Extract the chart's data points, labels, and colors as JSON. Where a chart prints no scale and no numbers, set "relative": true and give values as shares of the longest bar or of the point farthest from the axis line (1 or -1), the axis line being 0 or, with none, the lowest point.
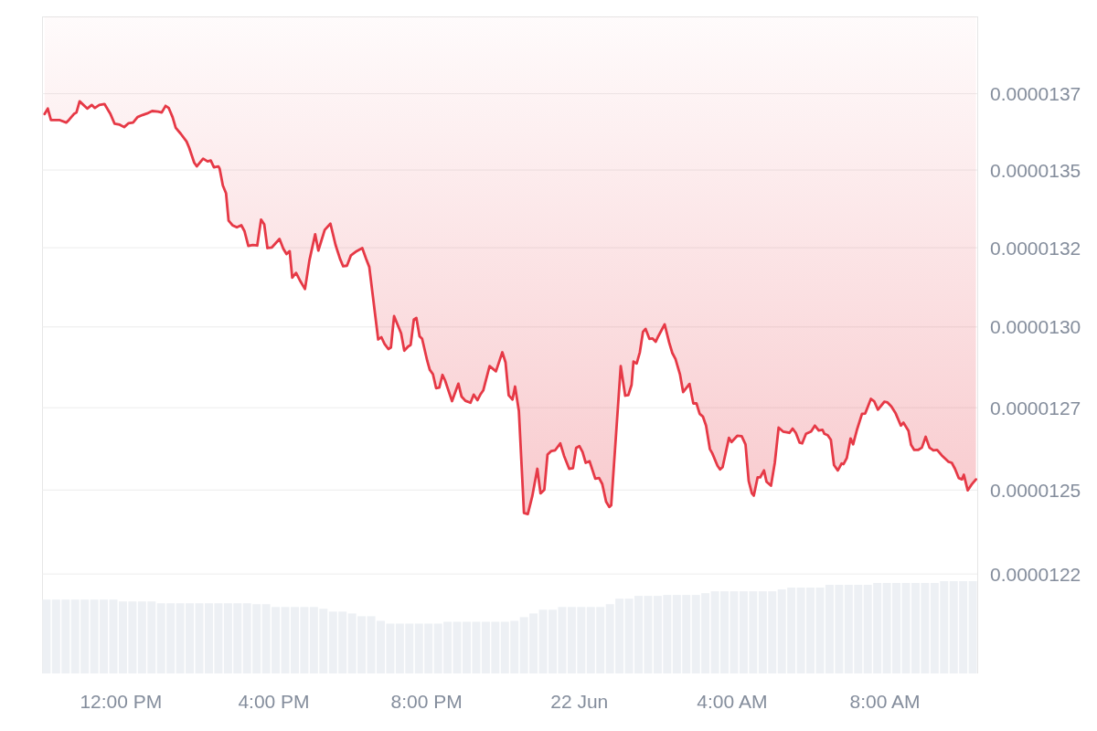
{
  "chart_data": [
    {
      "type": "line",
      "color": "#e63946",
      "log": true,
      "grid": "y",
      "tick_labels": "y",
      "xlim": [
        "--06-21T09:56",
        "--06-22T10:25"
      ],
      "ylim": [
        1.2229e-05,
        1.4008e-05
      ],
      "yticks": [
        {
          "value": 1.225e-05,
          "label": "0.0000122"
        },
        {
          "value": 1.25e-05,
          "label": "0.0000125"
        },
        {
          "value": 1.275e-05,
          "label": "0.0000127"
        },
        {
          "value": 1.3e-05,
          "label": "0.0000130"
        },
        {
          "value": 1.325e-05,
          "label": "0.0000132"
        },
        {
          "value": 1.35e-05,
          "label": "0.0000135"
        },
        {
          "value": 1.375e-05,
          "label": "0.0000137"
        }
      ],
      "x": [
        "--06-21T10:00",
        "--06-21T10:05",
        "--06-21T10:10",
        "--06-21T10:24",
        "--06-21T10:34",
        "--06-21T10:38",
        "--06-21T10:46",
        "--06-21T10:50",
        "--06-21T10:55",
        "--06-21T11:07",
        "--06-21T11:14",
        "--06-21T11:19",
        "--06-21T11:26",
        "--06-21T11:34",
        "--06-21T11:43",
        "--06-21T11:50",
        "--06-21T11:58",
        "--06-21T12:05",
        "--06-21T12:12",
        "--06-21T12:19",
        "--06-21T12:26",
        "--06-21T12:34",
        "--06-21T12:41",
        "--06-21T12:49",
        "--06-21T12:58",
        "--06-21T13:04",
        "--06-21T13:10",
        "--06-21T13:15",
        "--06-21T13:21",
        "--06-21T13:26",
        "--06-21T13:34",
        "--06-21T13:43",
        "--06-21T13:47",
        "--06-21T13:55",
        "--06-21T13:59",
        "--06-21T14:09",
        "--06-21T14:16",
        "--06-21T14:21",
        "--06-21T14:26",
        "--06-21T14:33",
        "--06-21T14:35",
        "--06-21T14:40",
        "--06-21T14:45",
        "--06-21T14:49",
        "--06-21T14:55",
        "--06-21T15:02",
        "--06-21T15:09",
        "--06-21T15:14",
        "--06-21T15:20",
        "--06-21T15:27",
        "--06-21T15:34",
        "--06-21T15:40",
        "--06-21T15:45",
        "--06-21T15:50",
        "--06-21T15:57",
        "--06-21T16:09",
        "--06-21T16:15",
        "--06-21T16:20",
        "--06-21T16:25",
        "--06-21T16:29",
        "--06-21T16:35",
        "--06-21T16:42",
        "--06-21T16:49",
        "--06-21T16:56",
        "--06-21T17:05",
        "--06-21T17:10",
        "--06-21T17:20",
        "--06-21T17:29",
        "--06-21T17:37",
        "--06-21T17:44",
        "--06-21T17:49",
        "--06-21T17:55",
        "--06-21T18:01",
        "--06-21T18:10",
        "--06-21T18:19",
        "--06-21T18:25",
        "--06-21T18:30",
        "--06-21T18:44",
        "--06-21T18:49",
        "--06-21T18:54",
        "--06-21T19:00",
        "--06-21T19:04",
        "--06-21T19:09",
        "--06-21T19:20",
        "--06-21T19:25",
        "--06-21T19:31",
        "--06-21T19:35",
        "--06-21T19:40",
        "--06-21T19:44",
        "--06-21T19:49",
        "--06-21T19:53",
        "--06-21T20:01",
        "--06-21T20:05",
        "--06-21T20:10",
        "--06-21T20:15",
        "--06-21T20:20",
        "--06-21T20:25",
        "--06-21T20:29",
        "--06-21T20:40",
        "--06-21T20:50",
        "--06-21T20:55",
        "--06-21T21:01",
        "--06-21T21:09",
        "--06-21T21:14",
        "--06-21T21:20",
        "--06-21T21:25",
        "--06-21T21:29",
        "--06-21T21:39",
        "--06-21T21:49",
        "--06-21T21:59",
        "--06-21T22:04",
        "--06-21T22:09",
        "--06-21T22:15",
        "--06-21T22:19",
        "--06-21T22:25",
        "--06-21T22:33",
        "--06-21T22:39",
        "--06-21T22:46",
        "--06-21T22:54",
        "--06-21T22:59",
        "--06-21T23:05",
        "--06-21T23:10",
        "--06-21T23:16",
        "--06-21T23:22",
        "--06-21T23:30",
        "--06-21T23:36",
        "--06-21T23:44",
        "--06-21T23:50",
        "--06-21T23:55",
        "--06-22T00:00",
        "--06-22T00:05",
        "--06-22T00:10",
        "--06-22T00:16",
        "--06-22T00:25",
        "--06-22T00:31",
        "--06-22T00:36",
        "--06-22T00:42",
        "--06-22T00:47",
        "--06-22T00:50",
        "--06-22T01:05",
        "--06-22T01:12",
        "--06-22T01:17",
        "--06-22T01:22",
        "--06-22T01:25",
        "--06-22T01:30",
        "--06-22T01:35",
        "--06-22T01:40",
        "--06-22T01:44",
        "--06-22T01:50",
        "--06-22T01:55",
        "--06-22T02:00",
        "--06-22T02:04",
        "--06-22T02:14",
        "--06-22T02:21",
        "--06-22T02:26",
        "--06-22T02:31",
        "--06-22T02:38",
        "--06-22T02:43",
        "--06-22T02:53",
        "--06-22T02:59",
        "--06-22T03:04",
        "--06-22T03:09",
        "--06-22T03:14",
        "--06-22T03:19",
        "--06-22T03:25",
        "--06-22T03:29",
        "--06-22T03:37",
        "--06-22T03:41",
        "--06-22T03:45",
        "--06-22T03:55",
        "--06-22T03:59",
        "--06-22T04:08",
        "--06-22T04:15",
        "--06-22T04:21",
        "--06-22T04:26",
        "--06-22T04:31",
        "--06-22T04:34",
        "--06-22T04:40",
        "--06-22T04:44",
        "--06-22T04:50",
        "--06-22T04:54",
        "--06-22T05:01",
        "--06-22T05:07",
        "--06-22T05:13",
        "--06-22T05:20",
        "--06-22T05:30",
        "--06-22T05:35",
        "--06-22T05:40",
        "--06-22T05:46",
        "--06-22T05:50",
        "--06-22T05:56",
        "--06-22T06:04",
        "--06-22T06:10",
        "--06-22T06:16",
        "--06-22T06:22",
        "--06-22T06:25",
        "--06-22T06:30",
        "--06-22T06:35",
        "--06-22T06:40",
        "--06-22T06:46",
        "--06-22T06:52",
        "--06-22T06:55",
        "--06-22T07:00",
        "--06-22T07:06",
        "--06-22T07:10",
        "--06-22T07:16",
        "--06-22T07:24",
        "--06-22T07:29",
        "--06-22T07:38",
        "--06-22T07:43",
        "--06-22T07:49",
        "--06-22T07:59",
        "--06-22T08:04",
        "--06-22T08:10",
        "--06-22T08:17",
        "--06-22T08:25",
        "--06-22T08:29",
        "--06-22T08:37",
        "--06-22T08:41",
        "--06-22T08:46",
        "--06-22T08:52",
        "--06-22T08:58",
        "--06-22T09:04",
        "--06-22T09:10",
        "--06-22T09:16",
        "--06-22T09:22",
        "--06-22T09:29",
        "--06-22T09:34",
        "--06-22T09:40",
        "--06-22T09:45",
        "--06-22T09:50",
        "--06-22T09:56",
        "--06-22T10:01",
        "--06-22T10:04",
        "--06-22T10:10",
        "--06-22T10:16",
        "--06-22T10:23"
      ],
      "values": [
        1.3683e-05,
        1.3701e-05,
        1.3663e-05,
        1.3663e-05,
        1.3655e-05,
        1.3663e-05,
        1.3683e-05,
        1.3688e-05,
        1.3725e-05,
        1.3701e-05,
        1.3713e-05,
        1.3703e-05,
        1.3713e-05,
        1.3716e-05,
        1.3685e-05,
        1.3651e-05,
        1.3648e-05,
        1.364e-05,
        1.3653e-05,
        1.3655e-05,
        1.3673e-05,
        1.368e-05,
        1.3685e-05,
        1.3693e-05,
        1.3691e-05,
        1.3688e-05,
        1.371e-05,
        1.3703e-05,
        1.3673e-05,
        1.3638e-05,
        1.3618e-05,
        1.3593e-05,
        1.3573e-05,
        1.3524e-05,
        1.3512e-05,
        1.3537e-05,
        1.3528e-05,
        1.3531e-05,
        1.3509e-05,
        1.3512e-05,
        1.3504e-05,
        1.345e-05,
        1.3425e-05,
        1.3337e-05,
        1.3322e-05,
        1.3315e-05,
        1.3322e-05,
        1.3303e-05,
        1.3256e-05,
        1.3259e-05,
        1.3257e-05,
        1.334e-05,
        1.3325e-05,
        1.3249e-05,
        1.3251e-05,
        1.3278e-05,
        1.3247e-05,
        1.323e-05,
        1.3239e-05,
        1.3155e-05,
        1.317e-05,
        1.3143e-05,
        1.3119e-05,
        1.321e-05,
        1.3293e-05,
        1.3241e-05,
        1.3307e-05,
        1.3327e-05,
        1.3259e-05,
        1.3215e-05,
        1.3191e-05,
        1.3193e-05,
        1.3225e-05,
        1.3239e-05,
        1.3249e-05,
        1.3215e-05,
        1.3189e-05,
        1.2961e-05,
        1.2968e-05,
        1.2947e-05,
        1.2931e-05,
        1.2936e-05,
        1.3034e-05,
        1.298e-05,
        1.2926e-05,
        1.2939e-05,
        1.2944e-05,
        1.3023e-05,
        1.3028e-05,
        1.2971e-05,
        1.2963e-05,
        1.2895e-05,
        1.2867e-05,
        1.2853e-05,
        1.281e-05,
        1.2812e-05,
        1.2851e-05,
        1.2834e-05,
        1.277e-05,
        1.2824e-05,
        1.2784e-05,
        1.2771e-05,
        1.2765e-05,
        1.279e-05,
        1.2773e-05,
        1.2792e-05,
        1.2803e-05,
        1.2878e-05,
        1.2862e-05,
        1.2921e-05,
        1.289e-05,
        1.2788e-05,
        1.2775e-05,
        1.2815e-05,
        1.274e-05,
        1.2431e-05,
        1.2428e-05,
        1.2481e-05,
        1.2564e-05,
        1.249e-05,
        1.2501e-05,
        1.2607e-05,
        1.2618e-05,
        1.262e-05,
        1.2641e-05,
        1.2603e-05,
        1.2564e-05,
        1.2566e-05,
        1.2627e-05,
        1.2633e-05,
        1.2615e-05,
        1.2582e-05,
        1.2587e-05,
        1.2534e-05,
        1.2536e-05,
        1.2518e-05,
        1.2465e-05,
        1.2449e-05,
        1.2454e-05,
        1.2878e-05,
        1.2787e-05,
        1.2789e-05,
        1.282e-05,
        1.2892e-05,
        1.2886e-05,
        1.2921e-05,
        1.2985e-05,
        1.2994e-05,
        1.2963e-05,
        1.2964e-05,
        1.2954e-05,
        1.2971e-05,
        1.3008e-05,
        1.2952e-05,
        1.2919e-05,
        1.29e-05,
        1.2853e-05,
        1.2798e-05,
        1.2823e-05,
        1.2763e-05,
        1.2763e-05,
        1.2731e-05,
        1.2723e-05,
        1.2695e-05,
        1.2624e-05,
        1.261e-05,
        1.2573e-05,
        1.2562e-05,
        1.2569e-05,
        1.2658e-05,
        1.2645e-05,
        1.2664e-05,
        1.2663e-05,
        1.2638e-05,
        1.2527e-05,
        1.249e-05,
        1.2483e-05,
        1.2538e-05,
        1.2538e-05,
        1.2559e-05,
        1.2525e-05,
        1.2513e-05,
        1.2582e-05,
        1.2689e-05,
        1.2677e-05,
        1.2673e-05,
        1.2686e-05,
        1.2673e-05,
        1.2643e-05,
        1.2641e-05,
        1.267e-05,
        1.2677e-05,
        1.2695e-05,
        1.268e-05,
        1.2682e-05,
        1.267e-05,
        1.2666e-05,
        1.2652e-05,
        1.2575e-05,
        1.2559e-05,
        1.258e-05,
        1.2578e-05,
        1.2596e-05,
        1.2656e-05,
        1.2638e-05,
        1.2682e-05,
        1.2731e-05,
        1.2732e-05,
        1.2777e-05,
        1.277e-05,
        1.2744e-05,
        1.2768e-05,
        1.2766e-05,
        1.2754e-05,
        1.2732e-05,
        1.2695e-05,
        1.2704e-05,
        1.2679e-05,
        1.2637e-05,
        1.2621e-05,
        1.2621e-05,
        1.2628e-05,
        1.2661e-05,
        1.2628e-05,
        1.262e-05,
        1.2621e-05,
        1.2605e-05,
        1.2596e-05,
        1.2585e-05,
        1.2582e-05,
        1.2564e-05,
        1.2536e-05,
        1.2532e-05,
        1.2546e-05,
        1.2499e-05,
        1.2516e-05,
        1.2532e-05
      ]
    },
    {
      "type": "bar",
      "color": "#edf0f4",
      "relative": true,
      "tick_labels": "x",
      "xlim": [
        "--06-21T09:56",
        "--06-22T10:25"
      ],
      "xticks": [
        {
          "value": "--06-21T12:00",
          "label": "12:00 PM"
        },
        {
          "value": "--06-21T16:00",
          "label": "4:00 PM"
        },
        {
          "value": "--06-21T20:00",
          "label": "8:00 PM"
        },
        {
          "value": "--06-22T00:00",
          "label": "22 Jun"
        },
        {
          "value": "--06-22T04:00",
          "label": "4:00 AM"
        },
        {
          "value": "--06-22T08:00",
          "label": "8:00 AM"
        }
      ],
      "x": [
        "--06-21T10:03",
        "--06-21T10:18",
        "--06-21T10:33",
        "--06-21T10:48",
        "--06-21T11:03",
        "--06-21T11:18",
        "--06-21T11:33",
        "--06-21T11:48",
        "--06-21T12:03",
        "--06-21T12:18",
        "--06-21T12:33",
        "--06-21T12:48",
        "--06-21T13:03",
        "--06-21T13:18",
        "--06-21T13:33",
        "--06-21T13:48",
        "--06-21T14:03",
        "--06-21T14:18",
        "--06-21T14:33",
        "--06-21T14:48",
        "--06-21T15:03",
        "--06-21T15:18",
        "--06-21T15:33",
        "--06-21T15:48",
        "--06-21T16:03",
        "--06-21T16:18",
        "--06-21T16:33",
        "--06-21T16:48",
        "--06-21T17:03",
        "--06-21T17:18",
        "--06-21T17:33",
        "--06-21T17:48",
        "--06-21T18:03",
        "--06-21T18:18",
        "--06-21T18:33",
        "--06-21T18:48",
        "--06-21T19:03",
        "--06-21T19:18",
        "--06-21T19:33",
        "--06-21T19:48",
        "--06-21T20:03",
        "--06-21T20:18",
        "--06-21T20:33",
        "--06-21T20:48",
        "--06-21T21:03",
        "--06-21T21:18",
        "--06-21T21:33",
        "--06-21T21:48",
        "--06-21T22:03",
        "--06-21T22:18",
        "--06-21T22:33",
        "--06-21T22:48",
        "--06-21T23:03",
        "--06-21T23:18",
        "--06-21T23:33",
        "--06-21T23:48",
        "--06-22T00:03",
        "--06-22T00:18",
        "--06-22T00:33",
        "--06-22T00:48",
        "--06-22T01:03",
        "--06-22T01:18",
        "--06-22T01:33",
        "--06-22T01:48",
        "--06-22T02:03",
        "--06-22T02:18",
        "--06-22T02:33",
        "--06-22T02:48",
        "--06-22T03:03",
        "--06-22T03:18",
        "--06-22T03:33",
        "--06-22T03:48",
        "--06-22T04:03",
        "--06-22T04:18",
        "--06-22T04:33",
        "--06-22T04:48",
        "--06-22T05:03",
        "--06-22T05:18",
        "--06-22T05:33",
        "--06-22T05:48",
        "--06-22T06:03",
        "--06-22T06:18",
        "--06-22T06:33",
        "--06-22T06:48",
        "--06-22T07:03",
        "--06-22T07:18",
        "--06-22T07:33",
        "--06-22T07:48",
        "--06-22T08:03",
        "--06-22T08:18",
        "--06-22T08:33",
        "--06-22T08:48",
        "--06-22T09:03",
        "--06-22T09:18",
        "--06-22T09:33",
        "--06-22T09:48",
        "--06-22T10:03",
        "--06-22T10:18"
      ],
      "values": [
        0.8,
        0.8,
        0.8,
        0.8,
        0.8,
        0.8,
        0.8,
        0.8,
        0.78,
        0.78,
        0.78,
        0.78,
        0.76,
        0.76,
        0.76,
        0.76,
        0.76,
        0.76,
        0.76,
        0.76,
        0.76,
        0.76,
        0.75,
        0.75,
        0.72,
        0.72,
        0.72,
        0.72,
        0.72,
        0.7,
        0.67,
        0.67,
        0.65,
        0.62,
        0.62,
        0.57,
        0.54,
        0.54,
        0.54,
        0.54,
        0.54,
        0.54,
        0.56,
        0.56,
        0.56,
        0.56,
        0.56,
        0.56,
        0.56,
        0.57,
        0.61,
        0.65,
        0.69,
        0.69,
        0.72,
        0.72,
        0.72,
        0.72,
        0.72,
        0.75,
        0.81,
        0.81,
        0.84,
        0.84,
        0.84,
        0.85,
        0.85,
        0.85,
        0.85,
        0.87,
        0.89,
        0.89,
        0.89,
        0.89,
        0.89,
        0.89,
        0.89,
        0.91,
        0.93,
        0.93,
        0.93,
        0.93,
        0.96,
        0.96,
        0.96,
        0.96,
        0.96,
        0.98,
        0.98,
        0.98,
        0.98,
        0.98,
        0.98,
        0.98,
        1,
        1,
        1,
        1
      ]
    }
  ]
}
